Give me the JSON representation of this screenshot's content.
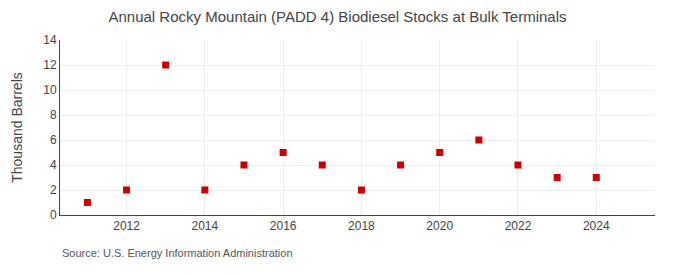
{
  "chart_data": {
    "type": "scatter",
    "title": "Annual Rocky Mountain (PADD 4) Biodiesel Stocks at Bulk Terminals",
    "y_label": "Thousand Barrels",
    "annotations": [
      "Source: U.S. Energy Information Administration"
    ],
    "x": [
      2011,
      2012,
      2013,
      2014,
      2015,
      2016,
      2017,
      2018,
      2019,
      2020,
      2021,
      2022,
      2023,
      2024
    ],
    "values": [
      1,
      2,
      12,
      2,
      4,
      5,
      4,
      2,
      4,
      5,
      6,
      4,
      3,
      3
    ],
    "color": "#cc0000",
    "marker": "square",
    "xlim": [
      2010.3,
      2025.5
    ],
    "xticks": [
      2012,
      2014,
      2016,
      2018,
      2020,
      2022,
      2024
    ],
    "ylim": [
      0,
      14
    ],
    "yticks": [
      0,
      2,
      4,
      6,
      8,
      10,
      12,
      14
    ],
    "grid": true
  }
}
